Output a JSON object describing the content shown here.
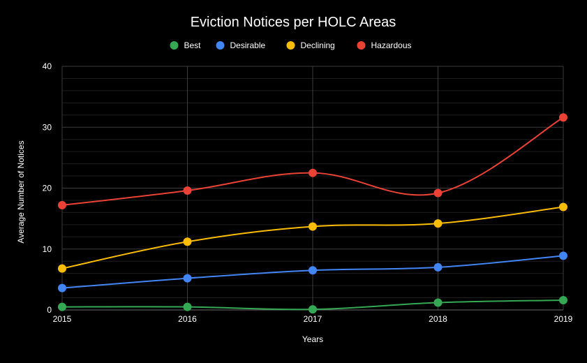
{
  "chart_data": {
    "type": "line",
    "title": "Eviction Notices per HOLC Areas",
    "xlabel": "Years",
    "ylabel": "Average Number of Notices",
    "x": [
      "2015",
      "2016",
      "2017",
      "2018",
      "2019"
    ],
    "ylim": [
      0,
      40
    ],
    "yticks": [
      "0",
      "10",
      "20",
      "30",
      "40"
    ],
    "grid": true,
    "smooth": true,
    "legend_position": "top",
    "series": [
      {
        "name": "Best",
        "color": "#34a853",
        "values": [
          0.5,
          0.5,
          0.1,
          1.2,
          1.6
        ]
      },
      {
        "name": "Desirable",
        "color": "#4285f4",
        "values": [
          3.6,
          5.2,
          6.5,
          7.0,
          8.9
        ]
      },
      {
        "name": "Declining",
        "color": "#fbbc04",
        "values": [
          6.8,
          11.2,
          13.7,
          14.2,
          16.9
        ]
      },
      {
        "name": "Hazardous",
        "color": "#ea4335",
        "values": [
          17.2,
          19.6,
          22.5,
          19.2,
          31.6
        ]
      }
    ]
  }
}
